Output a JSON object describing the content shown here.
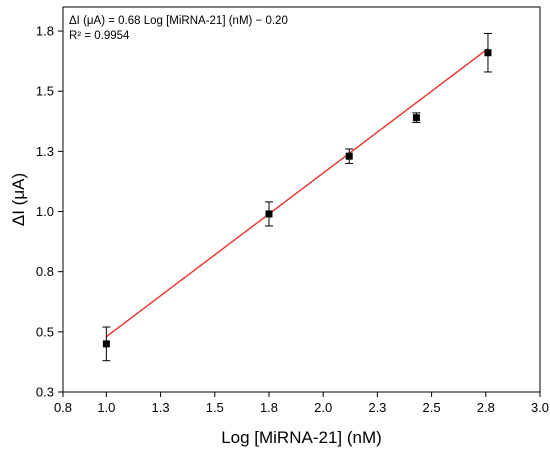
{
  "chart_data": {
    "type": "scatter",
    "title": "",
    "xlabel": "Log [MiRNA-21] (nM)",
    "ylabel": "ΔI (μA)",
    "xlim": [
      0.8,
      3.0
    ],
    "ylim": [
      0.25,
      1.85
    ],
    "xticks": [
      0.8,
      1.0,
      1.25,
      1.5,
      1.75,
      2.0,
      2.25,
      2.5,
      2.75,
      3.0
    ],
    "xtick_labels": [
      "0.8",
      "1.0",
      "1.3",
      "1.5",
      "1.8",
      "2.0",
      "2.3",
      "2.5",
      "2.8",
      "3.0"
    ],
    "yticks": [
      0.25,
      0.5,
      0.75,
      1.0,
      1.25,
      1.5,
      1.75
    ],
    "ytick_labels": [
      "0.3",
      "0.5",
      "0.8",
      "1.0",
      "1.3",
      "1.5",
      "1.8"
    ],
    "grid": false,
    "legend": "none",
    "series": [
      {
        "marker": "square",
        "color": "#000000",
        "x": [
          1.0,
          1.75,
          2.12,
          2.43,
          2.76
        ],
        "y": [
          0.45,
          0.99,
          1.23,
          1.39,
          1.66
        ],
        "yerr": [
          0.07,
          0.05,
          0.03,
          0.02,
          0.08
        ]
      }
    ],
    "fit": {
      "color": "#e8302a",
      "slope": 0.68,
      "intercept": -0.2,
      "x_range": [
        1.0,
        2.76
      ]
    },
    "annotations": [
      "ΔI (μA) = 0.68 Log [MiRNA-21] (nM) − 0.20",
      "R² = 0.9954"
    ]
  }
}
